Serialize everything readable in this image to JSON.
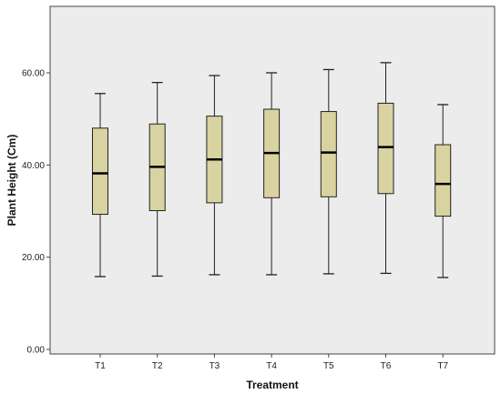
{
  "chart_data": {
    "type": "boxplot",
    "title": "",
    "xlabel": "Treatment",
    "ylabel": "Plant Height (Cm)",
    "ylim": [
      0,
      70
    ],
    "yticks": [
      0,
      20,
      40,
      60
    ],
    "ytick_labels": [
      "0.00",
      "20.00",
      "40.00",
      "60.00"
    ],
    "grid": false,
    "colors": {
      "plot_background": "#ececec",
      "box_fill": "#d8d3a0",
      "box_stroke": "#222222",
      "median": "#000000"
    },
    "categories": [
      "T1",
      "T2",
      "T3",
      "T4",
      "T5",
      "T6",
      "T7"
    ],
    "series": [
      {
        "category": "T1",
        "min": 15.8,
        "q1": 29.3,
        "median": 38.2,
        "q3": 48.0,
        "max": 55.5
      },
      {
        "category": "T2",
        "min": 15.9,
        "q1": 30.1,
        "median": 39.6,
        "q3": 48.9,
        "max": 57.9
      },
      {
        "category": "T3",
        "min": 16.2,
        "q1": 31.8,
        "median": 41.2,
        "q3": 50.6,
        "max": 59.4
      },
      {
        "category": "T4",
        "min": 16.2,
        "q1": 32.9,
        "median": 42.6,
        "q3": 52.1,
        "max": 60.0
      },
      {
        "category": "T5",
        "min": 16.4,
        "q1": 33.1,
        "median": 42.7,
        "q3": 51.6,
        "max": 60.7
      },
      {
        "category": "T6",
        "min": 16.5,
        "q1": 33.8,
        "median": 43.9,
        "q3": 53.4,
        "max": 62.2
      },
      {
        "category": "T7",
        "min": 15.6,
        "q1": 28.9,
        "median": 35.9,
        "q3": 44.4,
        "max": 53.1
      }
    ]
  }
}
